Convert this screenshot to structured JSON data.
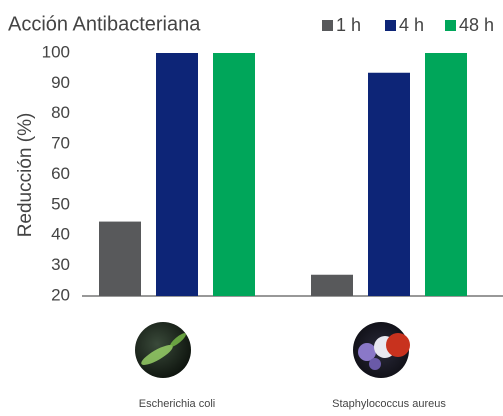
{
  "chart_data": {
    "type": "bar",
    "title": "Acción Antibacteriana",
    "y_label": "Reducción (%)",
    "categories": [
      "Escherichia coli",
      "Staphylococcus aureus"
    ],
    "series": [
      {
        "name": "1 h",
        "color": "#58595b",
        "values": [
          44.5,
          27
        ]
      },
      {
        "name": "4 h",
        "color": "#0d2577",
        "values": [
          100,
          93.5
        ]
      },
      {
        "name": "48 h",
        "color": "#00a65a",
        "values": [
          100,
          100
        ]
      }
    ],
    "ylim": [
      20,
      100
    ],
    "yticks": [
      20,
      30,
      40,
      50,
      60,
      70,
      80,
      90,
      100
    ],
    "grid": false,
    "legend": "top-right"
  }
}
